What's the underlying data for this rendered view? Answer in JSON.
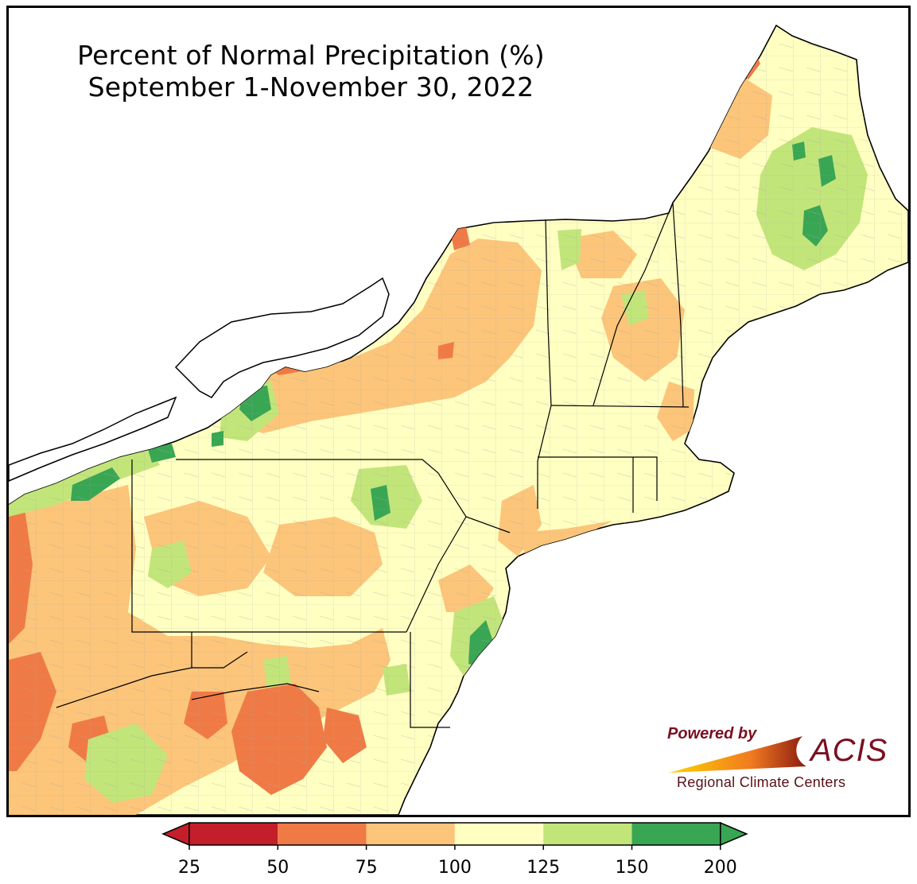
{
  "title": {
    "line1": "Percent of Normal Precipitation (%)",
    "line2": "September 1-November 30, 2022"
  },
  "logo": {
    "powered_by": "Powered by",
    "name": "ACIS",
    "subtitle": "Regional Climate Centers"
  },
  "legend": {
    "ticks": [
      "25",
      "50",
      "75",
      "100",
      "125",
      "150",
      "200"
    ],
    "colors": [
      "#c41e2a",
      "#f07a45",
      "#fcc57a",
      "#ffffc2",
      "#c2e57a",
      "#39a654"
    ],
    "extend_low_color": "#c41e2a",
    "extend_high_color": "#39a654"
  },
  "palette": {
    "lake": "#ffffff",
    "state_border": "#000000",
    "county_border": "#9a9a9a"
  }
}
